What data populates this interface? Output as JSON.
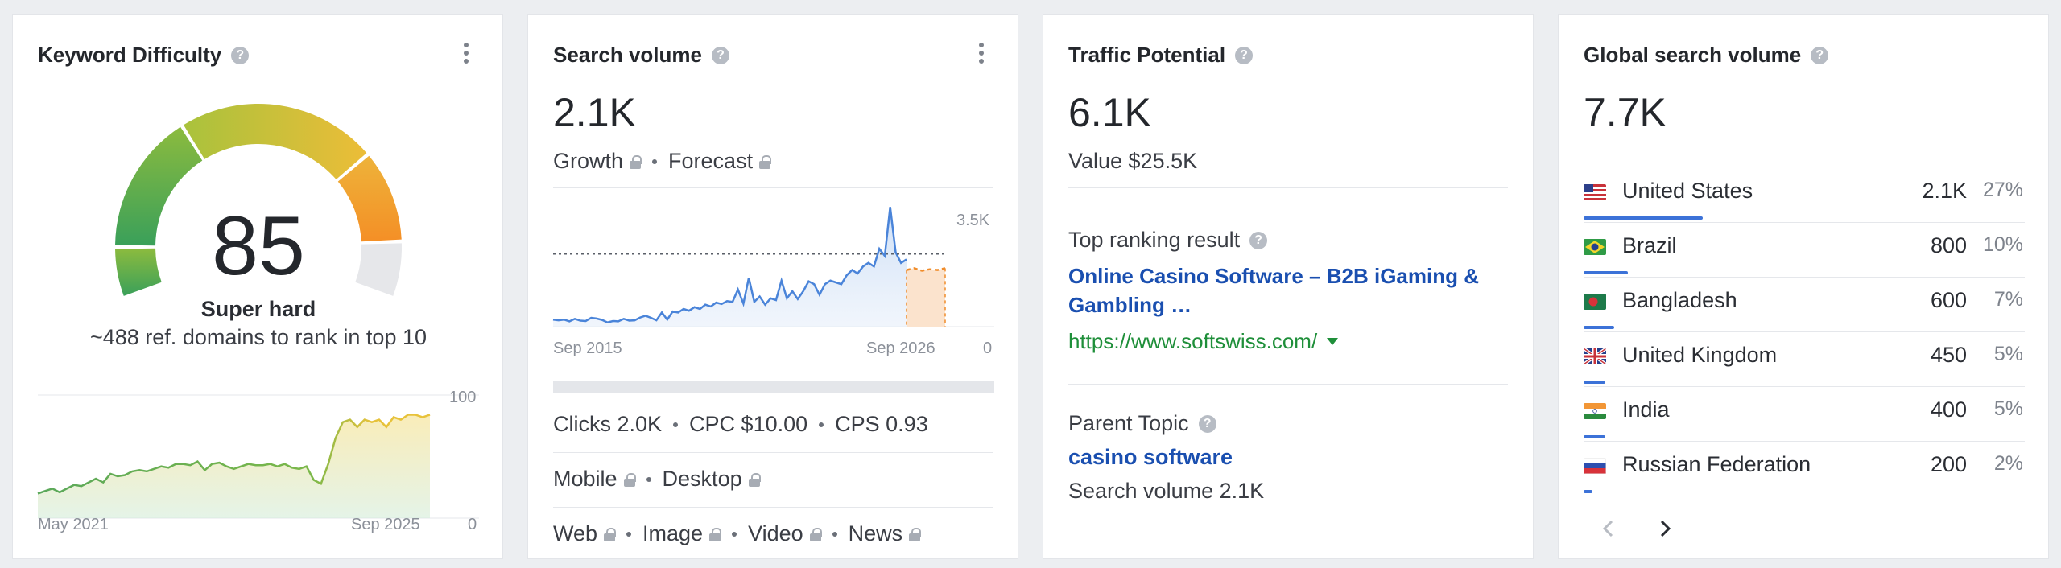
{
  "kd": {
    "title": "Keyword Difficulty",
    "score": "85",
    "level": "Super hard",
    "description": "~488 ref. domains to rank in top 10",
    "gauge_value": 85,
    "trend_start": "May 2021",
    "trend_end": "Sep 2025",
    "trend_ymax": "100",
    "trend_ymin": "0",
    "trend_values": [
      20,
      22,
      24,
      21,
      24,
      27,
      26,
      29,
      32,
      29,
      36,
      34,
      35,
      38,
      39,
      38,
      40,
      42,
      41,
      44,
      44,
      43,
      46,
      39,
      44,
      45,
      42,
      40,
      42,
      44,
      43,
      43,
      44,
      42,
      44,
      41,
      40,
      42,
      31,
      28,
      44,
      65,
      78,
      80,
      74,
      80,
      78,
      80,
      74,
      82,
      80,
      84,
      84,
      82,
      84
    ]
  },
  "sv": {
    "title": "Search volume",
    "value": "2.1K",
    "growth_label": "Growth",
    "forecast_label": "Forecast",
    "axis_start": "Sep 2015",
    "axis_end": "Sep 2026",
    "ymax": "3.5K",
    "ymin": "0",
    "trend_values": [
      200,
      180,
      200,
      150,
      220,
      170,
      160,
      250,
      230,
      190,
      120,
      160,
      150,
      220,
      170,
      180,
      260,
      310,
      250,
      180,
      400,
      200,
      430,
      400,
      500,
      450,
      550,
      500,
      620,
      570,
      680,
      640,
      720,
      700,
      1050,
      650,
      1380,
      700,
      850,
      620,
      800,
      750,
      1300,
      800,
      1000,
      780,
      1000,
      1280,
      1200,
      900,
      1200,
      1300,
      1250,
      1200,
      1450,
      1600,
      1500,
      1700,
      1800,
      1700,
      2200,
      2000,
      3380,
      2100,
      1800,
      1900
    ],
    "forecast_values": [
      1600,
      1650,
      1580,
      1620,
      1600,
      1650
    ],
    "avg_value": 2050,
    "clicks": "Clicks 2.0K",
    "cpc": "CPC $10.00",
    "cps": "CPS 0.93",
    "mobile_label": "Mobile",
    "desktop_label": "Desktop",
    "web_label": "Web",
    "image_label": "Image",
    "video_label": "Video",
    "news_label": "News"
  },
  "tp": {
    "title": "Traffic Potential",
    "value": "6.1K",
    "value_usd": "Value $25.5K",
    "top_ranking_label": "Top ranking result",
    "top_ranking_title": "Online Casino Software – B2B iGaming & Gambling …",
    "top_ranking_url": "https://www.softswiss.com/",
    "parent_topic_label": "Parent Topic",
    "parent_topic": "casino software",
    "parent_volume": "Search volume 2.1K"
  },
  "gv": {
    "title": "Global search volume",
    "value": "7.7K",
    "countries": [
      {
        "name": "United States",
        "volume": "2.1K",
        "pct": "27%",
        "share": 27,
        "flag": "us"
      },
      {
        "name": "Brazil",
        "volume": "800",
        "pct": "10%",
        "share": 10,
        "flag": "br"
      },
      {
        "name": "Bangladesh",
        "volume": "600",
        "pct": "7%",
        "share": 7,
        "flag": "bd"
      },
      {
        "name": "United Kingdom",
        "volume": "450",
        "pct": "5%",
        "share": 5,
        "flag": "gb"
      },
      {
        "name": "India",
        "volume": "400",
        "pct": "5%",
        "share": 5,
        "flag": "in"
      },
      {
        "name": "Russian Federation",
        "volume": "200",
        "pct": "2%",
        "share": 2,
        "flag": "ru"
      }
    ],
    "prev_icon": "chevron-left-icon",
    "next_icon": "chevron-right-icon"
  },
  "colors": {
    "link_blue": "#1a4fb0",
    "link_green": "#1f8f3a",
    "chart_blue": "#4a84d9",
    "forecast_orange": "#f08c2a",
    "gauge_green": "#3fa35b",
    "gauge_yellow": "#e8c23a",
    "gauge_orange": "#f49b2a"
  }
}
